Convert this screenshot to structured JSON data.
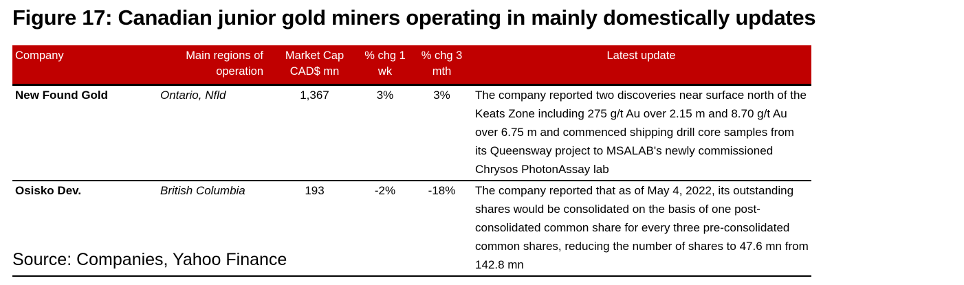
{
  "title": "Figure 17: Canadian junior gold miners operating in mainly domestically updates",
  "columns": [
    "Company",
    "Main regions of operation",
    "Market Cap CAD$ mn",
    "% chg 1 wk",
    "% chg 3 mth",
    "Latest update"
  ],
  "rows": [
    {
      "company": "New Found Gold",
      "regions": "Ontario, Nfld",
      "market_cap": "1,367",
      "chg_1wk": "3%",
      "chg_3mth": "3%",
      "update": "The company reported two discoveries near surface north of the Keats Zone including 275 g/t Au over 2.15 m and 8.70 g/t Au over 6.75 m and commenced shipping drill core samples from its Queensway project to MSALAB's newly commissioned Chrysos PhotonAssay lab"
    },
    {
      "company": "Osisko Dev.",
      "regions": "British Columbia",
      "market_cap": "193",
      "chg_1wk": "-2%",
      "chg_3mth": "-18%",
      "update": "The company reported that as of May 4, 2022, its outstanding shares would be consolidated on the basis of one post-consolidated common share for every three pre-consolidated common shares, reducing the number of shares to 47.6 mn from 142.8 mn"
    }
  ],
  "source": "Source: Companies, Yahoo Finance",
  "colors": {
    "header_bg": "#c00000"
  }
}
